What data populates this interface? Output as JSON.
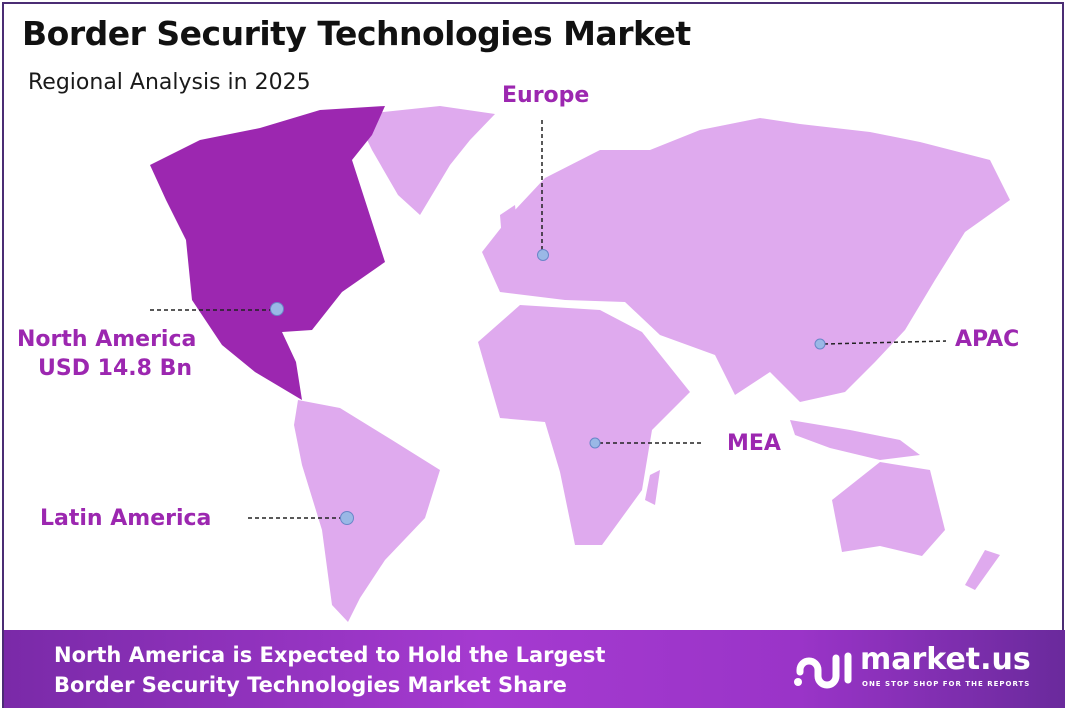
{
  "header": {
    "title": "Border Security Technologies Market",
    "subtitle": "Regional Analysis in 2025"
  },
  "colors": {
    "highlight_region": "#9c27b0",
    "other_regions": "#dfaaee",
    "label": "#9c27b0",
    "marker": "#9ab8e6",
    "frame": "#4b2d74"
  },
  "regions": [
    {
      "name": "North America",
      "value": "USD 14.8 Bn",
      "highlighted": true
    },
    {
      "name": "Europe"
    },
    {
      "name": "APAC"
    },
    {
      "name": "MEA"
    },
    {
      "name": "Latin America"
    }
  ],
  "footer": {
    "line1": "North America is Expected to Hold the Largest",
    "line2": "Border Security Technologies Market Share"
  },
  "logo": {
    "name": "market.us",
    "tagline": "ONE STOP SHOP FOR THE REPORTS"
  }
}
